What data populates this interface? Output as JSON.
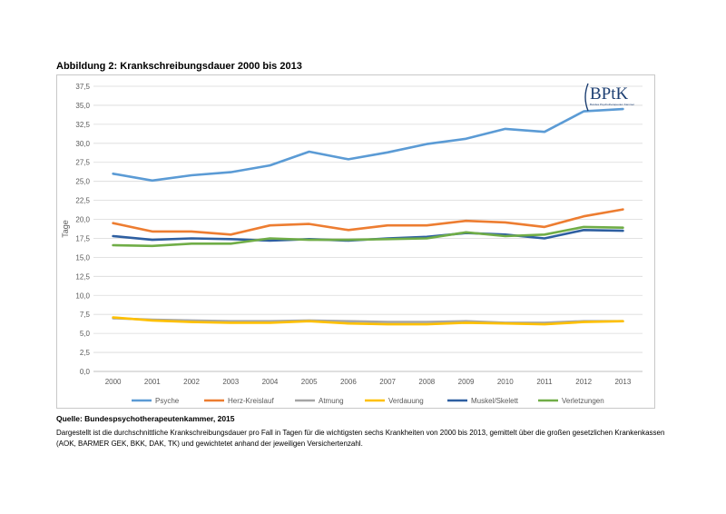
{
  "figure_title": "Abbildung 2: Krankschreibungsdauer 2000 bis 2013",
  "logo": {
    "text": "BPtK",
    "subtext": "Bundes Psychotherapeuten Kammer"
  },
  "source": "Quelle: Bundespsychotherapeutenkammer, 2015",
  "description": "Dargestellt ist die durchschnittliche Krankschreibungsdauer pro Fall in Tagen für die wichtigsten sechs Krankheiten von 2000 bis 2013, gemittelt über die großen gesetzlichen Krankenkassen (AOK, BARMER GEK, BKK, DAK, TK) und gewichtetet anhand der jeweiligen Versichertenzahl.",
  "chart_data": {
    "type": "line",
    "title": "",
    "xlabel": "",
    "ylabel": "Tage",
    "ylim": [
      0,
      37.5
    ],
    "ytick_step": 2.5,
    "ytick_labels": [
      "0,0",
      "2,5",
      "5,0",
      "7,5",
      "10,0",
      "12,5",
      "15,0",
      "17,5",
      "20,0",
      "22,5",
      "25,0",
      "27,5",
      "30,0",
      "32,5",
      "35,0",
      "37,5"
    ],
    "grid": true,
    "legend_position": "bottom",
    "categories": [
      "2000",
      "2001",
      "2002",
      "2003",
      "2004",
      "2005",
      "2006",
      "2007",
      "2008",
      "2009",
      "2010",
      "2011",
      "2012",
      "2013"
    ],
    "series": [
      {
        "name": "Psyche",
        "color": "#5b9bd5",
        "values": [
          26.0,
          25.1,
          25.8,
          26.2,
          27.1,
          28.9,
          27.9,
          28.8,
          29.9,
          30.6,
          31.9,
          31.5,
          34.2,
          34.5
        ]
      },
      {
        "name": "Herz-Kreislauf",
        "color": "#ed7d31",
        "values": [
          19.5,
          18.4,
          18.4,
          18.0,
          19.2,
          19.4,
          18.6,
          19.2,
          19.2,
          19.8,
          19.6,
          19.0,
          20.4,
          21.3
        ]
      },
      {
        "name": "Atmung",
        "color": "#a5a5a5",
        "values": [
          7.0,
          6.8,
          6.7,
          6.6,
          6.6,
          6.7,
          6.6,
          6.5,
          6.5,
          6.6,
          6.4,
          6.4,
          6.6,
          6.6
        ]
      },
      {
        "name": "Verdauung",
        "color": "#ffc000",
        "values": [
          7.1,
          6.7,
          6.5,
          6.4,
          6.4,
          6.6,
          6.3,
          6.2,
          6.2,
          6.4,
          6.3,
          6.2,
          6.5,
          6.6
        ]
      },
      {
        "name": "Muskel/Skelett",
        "color": "#2e5fa1",
        "values": [
          17.8,
          17.3,
          17.5,
          17.4,
          17.2,
          17.4,
          17.2,
          17.5,
          17.7,
          18.2,
          18.0,
          17.5,
          18.6,
          18.5
        ]
      },
      {
        "name": "Verletzungen",
        "color": "#70ad47",
        "values": [
          16.6,
          16.5,
          16.8,
          16.8,
          17.5,
          17.3,
          17.3,
          17.4,
          17.5,
          18.3,
          17.8,
          18.0,
          19.0,
          18.9
        ]
      }
    ]
  }
}
